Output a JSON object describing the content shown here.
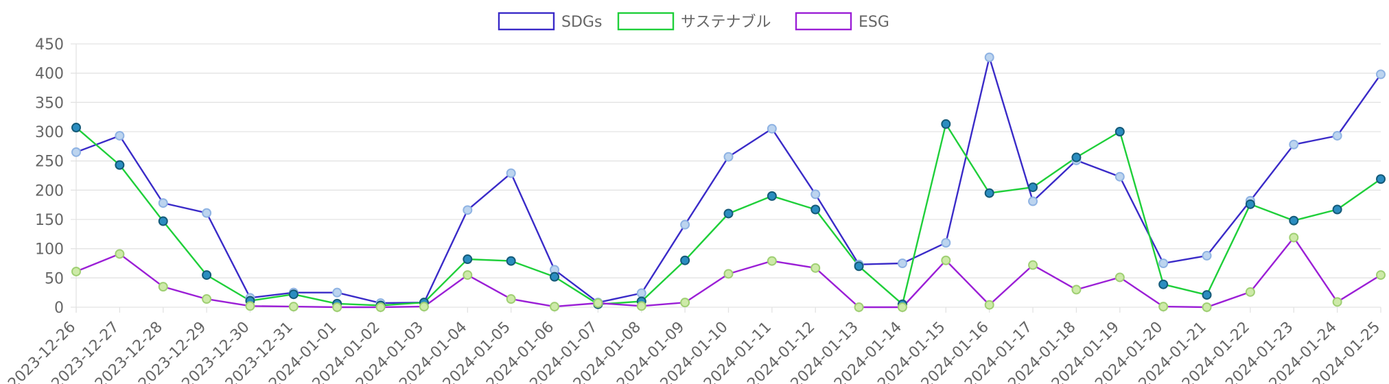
{
  "chart_data": {
    "type": "line",
    "title": "",
    "xlabel": "",
    "ylabel": "",
    "ylim": [
      0,
      450
    ],
    "yticks": [
      0,
      50,
      100,
      150,
      200,
      250,
      300,
      350,
      400,
      450
    ],
    "grid": true,
    "legend_position": "top",
    "categories": [
      "2023-12-26",
      "2023-12-27",
      "2023-12-28",
      "2023-12-29",
      "2023-12-30",
      "2023-12-31",
      "2024-01-01",
      "2024-01-02",
      "2024-01-03",
      "2024-01-04",
      "2024-01-05",
      "2024-01-06",
      "2024-01-07",
      "2024-01-08",
      "2024-01-09",
      "2024-01-10",
      "2024-01-11",
      "2024-01-12",
      "2024-01-13",
      "2024-01-14",
      "2024-01-15",
      "2024-01-16",
      "2024-01-17",
      "2024-01-18",
      "2024-01-19",
      "2024-01-20",
      "2024-01-21",
      "2024-01-22",
      "2024-01-23",
      "2024-01-24",
      "2024-01-25"
    ],
    "series": [
      {
        "name": "SDGs",
        "color": "#3a2bc8",
        "point_fill": "#bcd4ef",
        "point_stroke": "#8fb3e3",
        "values": [
          265,
          293,
          178,
          161,
          16,
          25,
          25,
          7,
          8,
          166,
          229,
          64,
          8,
          24,
          141,
          257,
          305,
          193,
          73,
          75,
          110,
          427,
          181,
          251,
          223,
          75,
          88,
          182,
          278,
          293,
          398
        ]
      },
      {
        "name": "サステナブル",
        "color": "#1fcf3a",
        "point_fill": "#2b8dc0",
        "point_stroke": "#145a78",
        "values": [
          307,
          243,
          147,
          55,
          11,
          22,
          6,
          3,
          8,
          82,
          79,
          52,
          5,
          10,
          80,
          160,
          190,
          167,
          70,
          5,
          313,
          195,
          205,
          256,
          300,
          39,
          21,
          176,
          148,
          167,
          219
        ]
      },
      {
        "name": "ESG",
        "color": "#9b1fd6",
        "point_fill": "#cdeaa8",
        "point_stroke": "#9fcf73",
        "values": [
          61,
          91,
          35,
          14,
          2,
          1,
          0,
          0,
          1,
          55,
          14,
          1,
          7,
          2,
          8,
          57,
          79,
          67,
          0,
          0,
          80,
          4,
          72,
          30,
          51,
          1,
          0,
          26,
          119,
          9,
          55
        ]
      }
    ]
  }
}
